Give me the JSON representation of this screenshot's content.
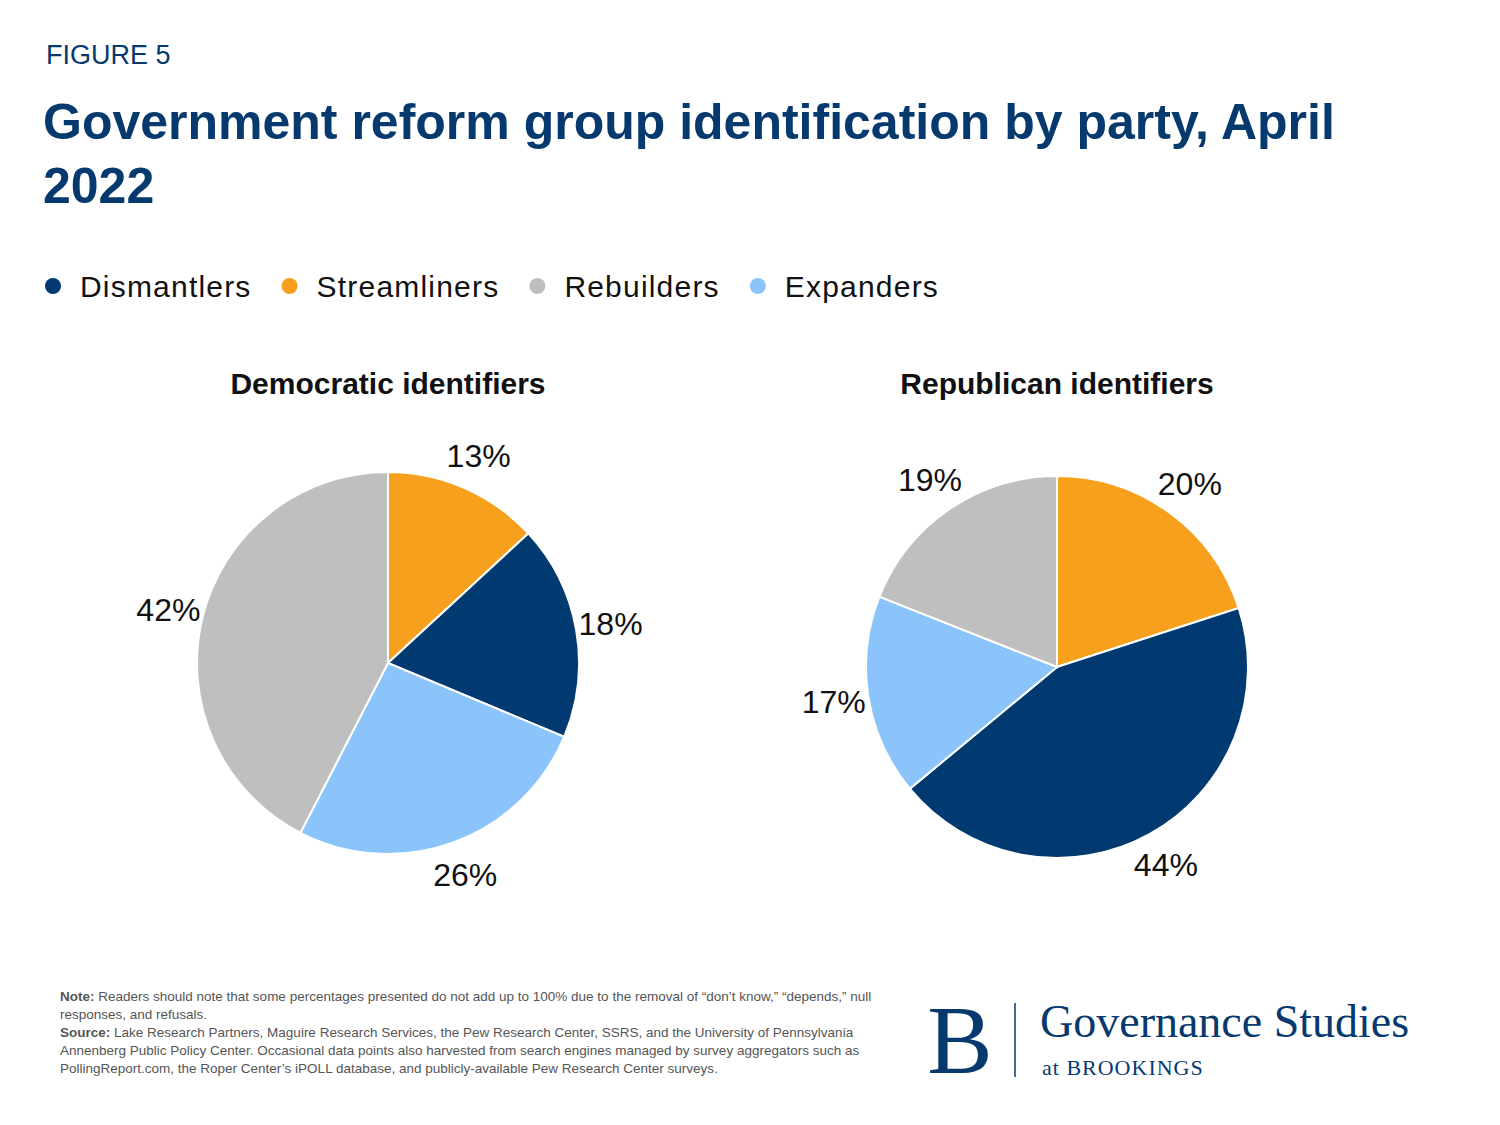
{
  "figure_label": "FIGURE 5",
  "title": "Government reform group identification by party, April 2022",
  "legend_items": [
    {
      "name": "Dismantlers",
      "color": "#003a70"
    },
    {
      "name": "Streamliners",
      "color": "#f7a01d"
    },
    {
      "name": "Rebuilders",
      "color": "#bfbfbf"
    },
    {
      "name": "Expanders",
      "color": "#8ac4fb"
    }
  ],
  "chart_data": [
    {
      "type": "pie",
      "title": "Democratic identifiers",
      "categories": [
        "Streamliners",
        "Dismantlers",
        "Expanders",
        "Rebuilders"
      ],
      "values": [
        13,
        18,
        26,
        42
      ],
      "value_labels": [
        "13%",
        "18%",
        "26%",
        "42%"
      ],
      "colors": [
        "#f7a01d",
        "#003a70",
        "#8ac4fb",
        "#bfbfbf"
      ],
      "data_labels": true
    },
    {
      "type": "pie",
      "title": "Republican identifiers",
      "categories": [
        "Streamliners",
        "Dismantlers",
        "Expanders",
        "Rebuilders"
      ],
      "values": [
        20,
        44,
        17,
        19
      ],
      "value_labels": [
        "20%",
        "44%",
        "17%",
        "19%"
      ],
      "colors": [
        "#f7a01d",
        "#003a70",
        "#8ac4fb",
        "#bfbfbf"
      ],
      "data_labels": true
    }
  ],
  "note": {
    "label": "Note:",
    "text": "Readers should note that some percentages presented do not add up to 100% due to the removal of “don’t know,” “depends,” null responses, and refusals."
  },
  "source": {
    "label": "Source:",
    "text": "Lake Research Partners, Maguire Research Services, the Pew Research Center, SSRS, and the University of Pennsylvania Annenberg Public Policy Center. Occasional data points also harvested from search engines managed by survey aggregators such as PollingReport.com, the Roper Center’s iPOLL database, and publicly-available Pew Research Center surveys."
  },
  "branding": {
    "mark": "B",
    "name": "Governance Studies",
    "org": "at BROOKINGS"
  }
}
